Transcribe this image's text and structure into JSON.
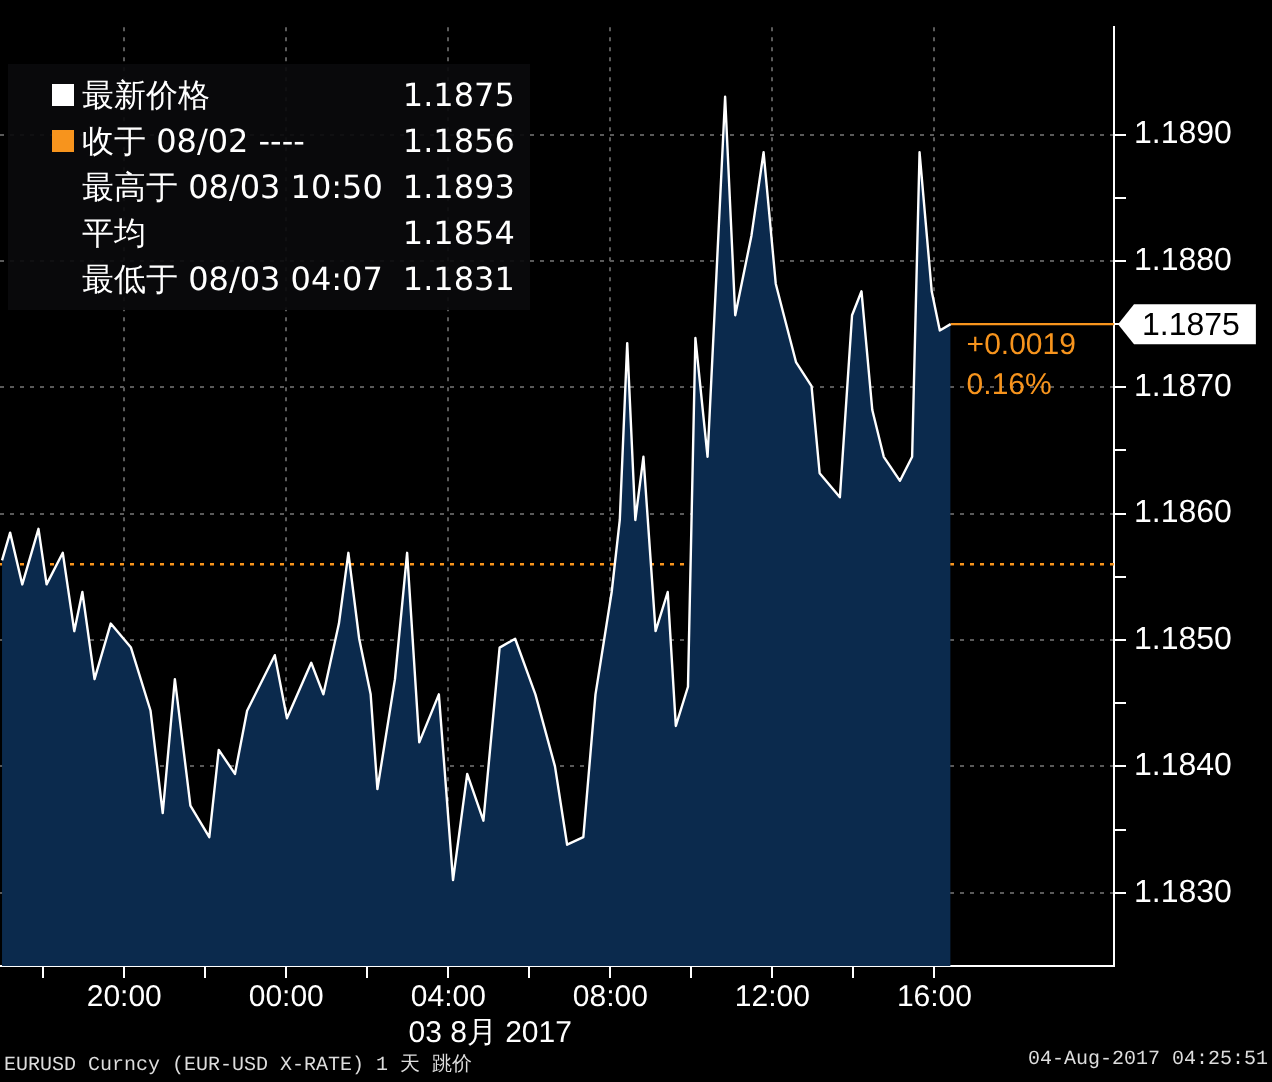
{
  "chart_data": {
    "type": "area",
    "xlabel": "03 8月 2017",
    "x": [
      "2017-08-02T16:59",
      "2017-08-02T17:11",
      "2017-08-02T17:29",
      "2017-08-02T17:53",
      "2017-08-02T18:05",
      "2017-08-02T18:29",
      "2017-08-02T18:46",
      "2017-08-02T18:58",
      "2017-08-02T19:16",
      "2017-08-02T19:40",
      "2017-08-02T20:10",
      "2017-08-02T20:39",
      "2017-08-02T20:57",
      "2017-08-02T21:15",
      "2017-08-02T21:38",
      "2017-08-02T22:06",
      "2017-08-02T22:20",
      "2017-08-02T22:44",
      "2017-08-02T23:02",
      "2017-08-02T23:43",
      "2017-08-03T00:01",
      "2017-08-03T00:37",
      "2017-08-03T00:55",
      "2017-08-03T01:18",
      "2017-08-03T01:32",
      "2017-08-03T01:48",
      "2017-08-03T02:05",
      "2017-08-03T02:15",
      "2017-08-03T02:41",
      "2017-08-03T02:59",
      "2017-08-03T03:17",
      "2017-08-03T03:46",
      "2017-08-03T04:07",
      "2017-08-03T04:28",
      "2017-08-03T04:52",
      "2017-08-03T05:16",
      "2017-08-03T05:39",
      "2017-08-03T06:09",
      "2017-08-03T06:38",
      "2017-08-03T06:56",
      "2017-08-03T07:20",
      "2017-08-03T07:38",
      "2017-08-03T08:02",
      "2017-08-03T08:14",
      "2017-08-03T08:25",
      "2017-08-03T08:37",
      "2017-08-03T08:49",
      "2017-08-03T09:07",
      "2017-08-03T09:25",
      "2017-08-03T09:37",
      "2017-08-03T09:55",
      "2017-08-03T10:06",
      "2017-08-03T10:24",
      "2017-08-03T10:50",
      "2017-08-03T11:05",
      "2017-08-03T11:29",
      "2017-08-03T11:47",
      "2017-08-03T12:05",
      "2017-08-03T12:17",
      "2017-08-03T12:35",
      "2017-08-03T12:58",
      "2017-08-03T13:10",
      "2017-08-03T13:40",
      "2017-08-03T13:58",
      "2017-08-03T14:12",
      "2017-08-03T14:28",
      "2017-08-03T14:45",
      "2017-08-03T15:09",
      "2017-08-03T15:27",
      "2017-08-03T15:38",
      "2017-08-03T15:56",
      "2017-08-03T16:08",
      "2017-08-03T16:24"
    ],
    "series": [
      {
        "name": "最新价格",
        "color": "#ffffff",
        "values": [
          1.18563,
          1.18585,
          1.18544,
          1.18588,
          1.18544,
          1.18569,
          1.18507,
          1.18538,
          1.18469,
          1.18513,
          1.18494,
          1.18444,
          1.18363,
          1.18469,
          1.18369,
          1.18344,
          1.18413,
          1.18394,
          1.18444,
          1.18488,
          1.18438,
          1.18482,
          1.18457,
          1.18513,
          1.18569,
          1.18501,
          1.18457,
          1.18382,
          1.18469,
          1.18569,
          1.18419,
          1.18457,
          1.1831,
          1.18394,
          1.18357,
          1.18494,
          1.18501,
          1.18457,
          1.184,
          1.18338,
          1.18344,
          1.18457,
          1.18538,
          1.18595,
          1.18735,
          1.18595,
          1.18645,
          1.18507,
          1.18538,
          1.18432,
          1.18463,
          1.18739,
          1.18645,
          1.1893,
          1.18757,
          1.1882,
          1.18886,
          1.18782,
          1.18757,
          1.1872,
          1.18701,
          1.18632,
          1.18613,
          1.18757,
          1.18776,
          1.18682,
          1.18645,
          1.18626,
          1.18645,
          1.18886,
          1.18776,
          1.18745,
          1.1875
        ]
      }
    ],
    "xlim": [
      "2017-08-02T16:56",
      "2017-08-03T20:26"
    ],
    "xticks": [
      {
        "value": "2017-08-02T18:00",
        "label": null
      },
      {
        "value": "2017-08-02T20:00",
        "label": "20:00"
      },
      {
        "value": "2017-08-02T22:00",
        "label": null
      },
      {
        "value": "2017-08-03T00:00",
        "label": "00:00"
      },
      {
        "value": "2017-08-03T02:00",
        "label": null
      },
      {
        "value": "2017-08-03T04:00",
        "label": "04:00"
      },
      {
        "value": "2017-08-03T06:00",
        "label": null
      },
      {
        "value": "2017-08-03T08:00",
        "label": "08:00"
      },
      {
        "value": "2017-08-03T10:00",
        "label": null
      },
      {
        "value": "2017-08-03T12:00",
        "label": "12:00"
      },
      {
        "value": "2017-08-03T14:00",
        "label": null
      },
      {
        "value": "2017-08-03T16:00",
        "label": "16:00"
      }
    ],
    "ylim": [
      1.18242,
      1.18985
    ],
    "yticks": [
      {
        "value": 1.183,
        "label": "1.1830"
      },
      {
        "value": 1.1835,
        "label": null
      },
      {
        "value": 1.184,
        "label": "1.1840"
      },
      {
        "value": 1.1845,
        "label": null
      },
      {
        "value": 1.185,
        "label": "1.1850"
      },
      {
        "value": 1.1855,
        "label": null
      },
      {
        "value": 1.186,
        "label": "1.1860"
      },
      {
        "value": 1.1865,
        "label": null
      },
      {
        "value": 1.187,
        "label": "1.1870"
      },
      {
        "value": 1.1875,
        "label": null
      },
      {
        "value": 1.188,
        "label": "1.1880"
      },
      {
        "value": 1.1885,
        "label": null
      },
      {
        "value": 1.189,
        "label": "1.1890"
      }
    ],
    "grid": true,
    "legend": "top left",
    "marker": "none",
    "ref_lines": [
      {
        "axis": "y",
        "value": 1.1875,
        "label": "1.1875",
        "color": "#f7941d",
        "line_style": "solid"
      },
      {
        "axis": "y",
        "value": 1.1856,
        "label": "收于 08/02 ---- 1.1856",
        "color": "#f7941d",
        "line_style": "dotted"
      }
    ],
    "annotations": [
      {
        "text": "+0.0019",
        "x": "2017-08-03T16:24",
        "y": 1.1875
      },
      {
        "text": "0.16%",
        "x": "2017-08-03T16:24",
        "y": 1.1875
      },
      "最高于 08/03 10:50 1.1893",
      "平均 1.1854",
      "最低于 08/03 04:07 1.1831",
      "EURUSD Curncy (EUR-USD X-RATE) 1 天 跳价",
      "04-Aug-2017 04:25:51"
    ]
  }
}
